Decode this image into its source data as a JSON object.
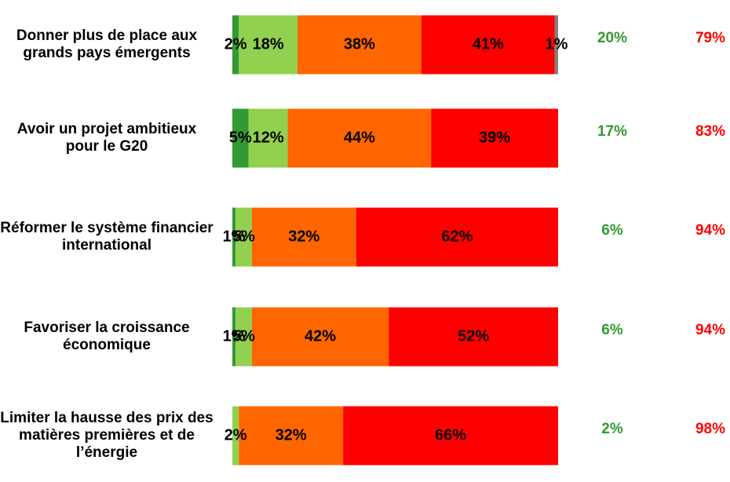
{
  "chart_data": {
    "type": "stacked-bar-horizontal",
    "categories": [
      "Donner plus de place aux grands pays émergents",
      "Avoir un projet ambitieux pour le G20",
      "Réformer le système financier international",
      "Favoriser la croissance économique",
      "Limiter la hausse des prix des matières premières et de l’énergie"
    ],
    "xlim": [
      0,
      100
    ],
    "series": [
      {
        "color": "#339933",
        "values": [
          2,
          5,
          1,
          1,
          null
        ],
        "value_labels": [
          "2%",
          "5%",
          "1%",
          "1%",
          null
        ]
      },
      {
        "color": "#92d050",
        "values": [
          18,
          12,
          5,
          5,
          2
        ],
        "value_labels": [
          "18%",
          "12%",
          "5%",
          "5%",
          "2%"
        ]
      },
      {
        "color": "#ff6600",
        "values": [
          38,
          44,
          32,
          42,
          32
        ],
        "value_labels": [
          "38%",
          "44%",
          "32%",
          "42%",
          "32%"
        ]
      },
      {
        "color": "#ff0000",
        "values": [
          41,
          39,
          62,
          52,
          66
        ],
        "value_labels": [
          "41%",
          "39%",
          "62%",
          "52%",
          "66%"
        ]
      },
      {
        "color": "#808080",
        "values": [
          1,
          null,
          null,
          null,
          null
        ],
        "value_labels": [
          "1%",
          null,
          null,
          null,
          null
        ]
      }
    ],
    "summary": [
      {
        "color": "#339933",
        "values": [
          20,
          17,
          6,
          6,
          2
        ],
        "value_labels": [
          "20%",
          "17%",
          "6%",
          "6%",
          "2%"
        ]
      },
      {
        "color": "#ff0000",
        "values": [
          79,
          83,
          94,
          94,
          98
        ],
        "value_labels": [
          "79%",
          "83%",
          "94%",
          "94%",
          "98%"
        ]
      }
    ]
  }
}
